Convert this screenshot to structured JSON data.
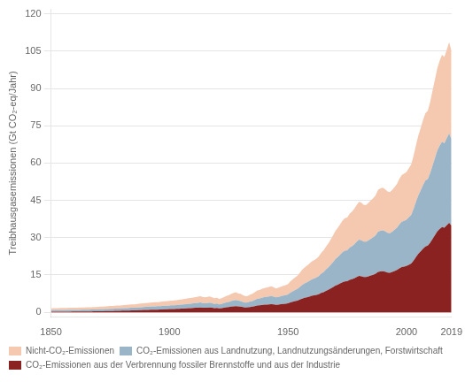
{
  "chart_data": {
    "type": "area",
    "stacked": true,
    "grid": "y",
    "legend": "bottom",
    "ylabel": "Treibhausgasemissionen (Gt CO₂-eq/Jahr)",
    "xlim": [
      1850,
      2019
    ],
    "ylim": [
      -2,
      122
    ],
    "xticks": [
      1850,
      1900,
      1950,
      2000,
      2019
    ],
    "yticks": [
      0,
      15,
      30,
      45,
      60,
      75,
      90,
      105,
      120
    ],
    "x": [
      1850,
      1851,
      1852,
      1853,
      1854,
      1855,
      1856,
      1857,
      1858,
      1859,
      1860,
      1861,
      1862,
      1863,
      1864,
      1865,
      1866,
      1867,
      1868,
      1869,
      1870,
      1871,
      1872,
      1873,
      1874,
      1875,
      1876,
      1877,
      1878,
      1879,
      1880,
      1881,
      1882,
      1883,
      1884,
      1885,
      1886,
      1887,
      1888,
      1889,
      1890,
      1891,
      1892,
      1893,
      1894,
      1895,
      1896,
      1897,
      1898,
      1899,
      1900,
      1901,
      1902,
      1903,
      1904,
      1905,
      1906,
      1907,
      1908,
      1909,
      1910,
      1911,
      1912,
      1913,
      1914,
      1915,
      1916,
      1917,
      1918,
      1919,
      1920,
      1921,
      1922,
      1923,
      1924,
      1925,
      1926,
      1927,
      1928,
      1929,
      1930,
      1931,
      1932,
      1933,
      1934,
      1935,
      1936,
      1937,
      1938,
      1939,
      1940,
      1941,
      1942,
      1943,
      1944,
      1945,
      1946,
      1947,
      1948,
      1949,
      1950,
      1951,
      1952,
      1953,
      1954,
      1955,
      1956,
      1957,
      1958,
      1959,
      1960,
      1961,
      1962,
      1963,
      1964,
      1965,
      1966,
      1967,
      1968,
      1969,
      1970,
      1971,
      1972,
      1973,
      1974,
      1975,
      1976,
      1977,
      1978,
      1979,
      1980,
      1981,
      1982,
      1983,
      1984,
      1985,
      1986,
      1987,
      1988,
      1989,
      1990,
      1991,
      1992,
      1993,
      1994,
      1995,
      1996,
      1997,
      1998,
      1999,
      2000,
      2001,
      2002,
      2003,
      2004,
      2005,
      2006,
      2007,
      2008,
      2009,
      2010,
      2011,
      2012,
      2013,
      2014,
      2015,
      2016,
      2017,
      2018,
      2019
    ],
    "series": [
      {
        "name": "CO₂-Emissionen aus der Verbrennung fossiler Brennstoffe und aus der Industrie",
        "color": "#8B2222",
        "values": [
          0.2,
          0.21,
          0.22,
          0.23,
          0.24,
          0.25,
          0.26,
          0.27,
          0.28,
          0.29,
          0.3,
          0.31,
          0.32,
          0.33,
          0.34,
          0.35,
          0.36,
          0.37,
          0.38,
          0.4,
          0.42,
          0.44,
          0.46,
          0.48,
          0.5,
          0.53,
          0.55,
          0.57,
          0.59,
          0.61,
          0.64,
          0.66,
          0.69,
          0.71,
          0.74,
          0.76,
          0.79,
          0.83,
          0.87,
          0.91,
          0.95,
          0.98,
          1.01,
          1.03,
          1.05,
          1.08,
          1.11,
          1.15,
          1.19,
          1.23,
          1.27,
          1.3,
          1.33,
          1.37,
          1.42,
          1.47,
          1.52,
          1.58,
          1.64,
          1.7,
          1.76,
          1.82,
          1.88,
          1.96,
          1.88,
          1.82,
          1.88,
          1.94,
          1.8,
          1.7,
          1.75,
          1.6,
          1.68,
          1.85,
          1.98,
          2.1,
          2.25,
          2.4,
          2.5,
          2.35,
          2.28,
          2.1,
          1.95,
          2.0,
          2.15,
          2.28,
          2.5,
          2.72,
          2.8,
          2.92,
          3.05,
          3.12,
          3.2,
          3.28,
          3.15,
          3.0,
          3.1,
          3.22,
          3.35,
          3.45,
          3.6,
          3.95,
          4.2,
          4.48,
          4.72,
          5.1,
          5.5,
          5.82,
          6.05,
          6.3,
          6.6,
          6.78,
          7.0,
          7.3,
          7.75,
          8.1,
          8.6,
          9.0,
          9.55,
          10.1,
          10.7,
          11.1,
          11.6,
          12.1,
          12.4,
          12.5,
          13.0,
          13.3,
          13.7,
          14.2,
          14.6,
          14.5,
          14.2,
          14.2,
          14.5,
          14.8,
          15.1,
          15.5,
          16.2,
          16.4,
          16.5,
          16.3,
          16.0,
          15.9,
          16.2,
          16.6,
          17.0,
          17.7,
          18.2,
          18.4,
          18.6,
          19.1,
          19.6,
          20.8,
          22.2,
          23.5,
          24.5,
          25.6,
          26.5,
          26.8,
          28.0,
          29.5,
          31.0,
          32.5,
          33.5,
          34.3,
          34.0,
          35.0,
          36.0,
          34.8
        ]
      },
      {
        "name": "CO₂-Emissionen aus Landnutzung, Landnutzungsänderungen, Forstwirtschaft",
        "color": "#9BB5C8",
        "values": [
          0.6,
          0.61,
          0.62,
          0.62,
          0.63,
          0.63,
          0.64,
          0.64,
          0.65,
          0.65,
          0.66,
          0.66,
          0.67,
          0.68,
          0.69,
          0.7,
          0.71,
          0.72,
          0.73,
          0.74,
          0.75,
          0.77,
          0.79,
          0.81,
          0.83,
          0.85,
          0.87,
          0.89,
          0.91,
          0.93,
          0.96,
          0.98,
          1.01,
          1.03,
          1.06,
          1.08,
          1.11,
          1.14,
          1.17,
          1.2,
          1.23,
          1.26,
          1.28,
          1.3,
          1.32,
          1.34,
          1.36,
          1.39,
          1.42,
          1.45,
          1.48,
          1.5,
          1.52,
          1.55,
          1.58,
          1.62,
          1.66,
          1.7,
          1.74,
          1.78,
          1.82,
          1.87,
          1.91,
          1.97,
          1.87,
          1.82,
          1.87,
          1.93,
          1.79,
          1.69,
          1.74,
          1.59,
          1.67,
          1.84,
          1.97,
          2.09,
          2.24,
          2.39,
          2.49,
          2.34,
          2.27,
          2.09,
          1.94,
          1.99,
          2.14,
          2.27,
          2.49,
          2.71,
          2.79,
          2.91,
          3.04,
          3.11,
          3.19,
          3.27,
          3.14,
          2.99,
          3.09,
          3.21,
          3.34,
          3.44,
          3.59,
          3.94,
          4.19,
          4.47,
          4.71,
          5.09,
          5.49,
          5.81,
          6.04,
          6.29,
          6.59,
          6.77,
          6.99,
          7.29,
          7.74,
          8.09,
          8.59,
          8.99,
          9.54,
          10.09,
          10.69,
          11.09,
          11.59,
          12.09,
          12.39,
          12.49,
          12.99,
          13.29,
          13.69,
          14.19,
          14.59,
          14.49,
          14.19,
          14.19,
          14.49,
          14.79,
          15.09,
          15.49,
          16.19,
          16.39,
          16.49,
          16.29,
          15.99,
          15.89,
          16.19,
          16.59,
          16.99,
          17.69,
          18.19,
          18.39,
          18.59,
          19.09,
          19.59,
          20.79,
          22.19,
          23.49,
          24.49,
          25.59,
          26.49,
          26.79,
          27.99,
          29.49,
          30.99,
          32.49,
          33.49,
          34.29,
          33.99,
          34.99,
          35.99,
          34.79
        ]
      },
      {
        "name": "Nicht-CO₂-Emissionen",
        "color": "#F5C8B0",
        "values": [
          0.8,
          0.81,
          0.82,
          0.83,
          0.84,
          0.85,
          0.86,
          0.87,
          0.88,
          0.89,
          0.9,
          0.91,
          0.92,
          0.93,
          0.94,
          0.95,
          0.96,
          0.97,
          0.98,
          1.0,
          1.02,
          1.04,
          1.06,
          1.08,
          1.1,
          1.13,
          1.15,
          1.17,
          1.19,
          1.21,
          1.24,
          1.26,
          1.29,
          1.31,
          1.34,
          1.36,
          1.39,
          1.43,
          1.47,
          1.51,
          1.55,
          1.58,
          1.61,
          1.63,
          1.65,
          1.68,
          1.71,
          1.75,
          1.79,
          1.83,
          1.87,
          1.9,
          1.93,
          1.97,
          2.02,
          2.07,
          2.12,
          2.18,
          2.24,
          2.3,
          2.36,
          2.42,
          2.48,
          2.56,
          2.48,
          2.42,
          2.48,
          2.54,
          2.4,
          2.3,
          2.35,
          2.2,
          2.28,
          2.45,
          2.58,
          2.7,
          2.85,
          3.0,
          3.1,
          2.95,
          2.88,
          2.7,
          2.55,
          2.6,
          2.75,
          2.88,
          3.1,
          3.32,
          3.4,
          3.52,
          3.65,
          3.72,
          3.8,
          3.88,
          3.75,
          3.6,
          3.7,
          3.82,
          3.95,
          4.05,
          4.2,
          4.55,
          4.8,
          5.08,
          5.32,
          5.7,
          6.1,
          6.42,
          6.65,
          6.9,
          7.2,
          7.38,
          7.6,
          7.9,
          8.35,
          8.7,
          9.2,
          9.6,
          10.15,
          10.7,
          11.3,
          11.7,
          12.2,
          12.7,
          13.0,
          13.1,
          13.6,
          13.9,
          14.3,
          14.8,
          15.2,
          15.1,
          14.8,
          14.8,
          15.1,
          15.4,
          15.7,
          16.1,
          16.8,
          17.0,
          17.1,
          16.9,
          16.6,
          16.5,
          16.8,
          17.2,
          17.6,
          18.3,
          18.8,
          19.0,
          19.2,
          19.7,
          20.2,
          21.4,
          22.8,
          24.1,
          25.1,
          26.2,
          27.1,
          27.4,
          28.6,
          30.1,
          31.6,
          33.1,
          34.1,
          34.9,
          34.6,
          35.6,
          36.6,
          35.4
        ]
      }
    ]
  }
}
